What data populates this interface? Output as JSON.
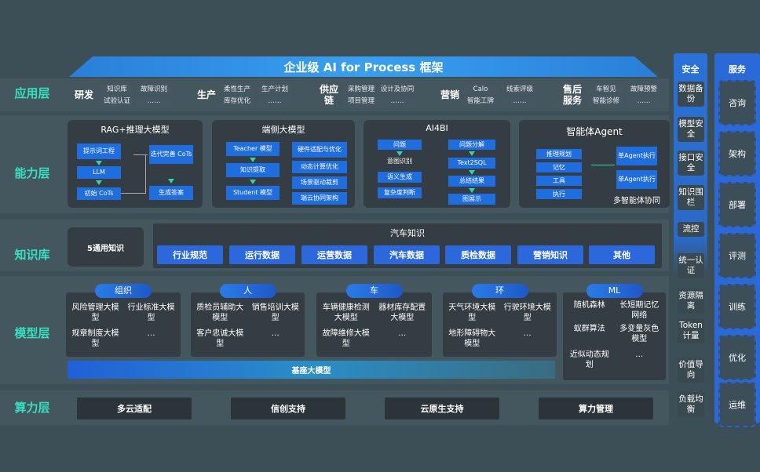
{
  "title": "企业级 AI for Process 框架",
  "layers": {
    "app": "应用层",
    "capability": "能力层",
    "knowledge": "知识库",
    "model": "模型层",
    "compute": "算力层"
  },
  "app": [
    {
      "name": "研发",
      "items": [
        "知识库",
        "故障识别",
        "试验认证",
        "……"
      ]
    },
    {
      "name": "生产",
      "items": [
        "柔性生产",
        "生产计划",
        "库存优化",
        "……"
      ]
    },
    {
      "name": "供应链",
      "items": [
        "采购管理",
        "设计及协同",
        "项目管理",
        "……"
      ]
    },
    {
      "name": "营销",
      "items": [
        "Calo",
        "线索评级",
        "智能工牌",
        "……"
      ]
    },
    {
      "name": "售后服务",
      "items": [
        "车智见",
        "故障预警",
        "智能诊修",
        "……"
      ]
    }
  ],
  "capability": {
    "rag": {
      "title": "RAG+推理大模型",
      "steps": [
        "提示词工程",
        "LLM",
        "初始 CoTs",
        "迭代完善 CoTs",
        "生成答案"
      ]
    },
    "edge": {
      "title": "端侧大模型",
      "steps": [
        "Teacher 模型",
        "知识提取",
        "Student 模型"
      ],
      "features": [
        "硬件适配与优化",
        "动态计算优化",
        "场景驱动裁剪",
        "端云协同架构"
      ]
    },
    "ai4bi": {
      "title": "AI4BI",
      "left": [
        "问题",
        "意图识别",
        "语义生成",
        "复杂度判断"
      ],
      "right": [
        "问题分解",
        "Text2SQL",
        "总结结果",
        "图展示"
      ]
    },
    "agent": {
      "title": "智能体Agent",
      "items": [
        "推理规划",
        "记忆",
        "工具",
        "执行"
      ],
      "exec": [
        "单Agent执行",
        "单Agent执行"
      ],
      "footer": "多智能体协同"
    }
  },
  "knowledge": {
    "general": "5通用知识",
    "auto_title": "汽车知识",
    "chips": [
      "行业规范",
      "运行数据",
      "运营数据",
      "汽车数据",
      "质检数据",
      "营销知识",
      "其他"
    ]
  },
  "models": [
    {
      "tag": "组织",
      "items": [
        "风险管理大模型",
        "行业标准大模型",
        "规章制度大模型",
        "…"
      ]
    },
    {
      "tag": "人",
      "items": [
        "质检员辅助大模型",
        "销售培训大模型",
        "客户忠诚大模型",
        "…"
      ]
    },
    {
      "tag": "车",
      "items": [
        "车辆健康检测大模型",
        "器材库存配置大模型",
        "故障维修大模型",
        "…"
      ]
    },
    {
      "tag": "环",
      "items": [
        "天气环境大模型",
        "行驶环境大模型",
        "地形障碍物大模型",
        "…"
      ]
    },
    {
      "tag": "ML",
      "items": [
        "随机森林",
        "长短期记忆网络",
        "蚁群算法",
        "多变量灰色模型",
        "近似动态规划",
        "…"
      ]
    }
  ],
  "base_model": "基座大模型",
  "compute": [
    "多云适配",
    "信创支持",
    "云原生支持",
    "算力管理"
  ],
  "security": {
    "title": "安全",
    "items": [
      "数据备份",
      "模型安全",
      "接口安全",
      "知识围栏",
      "流控",
      "统一认证",
      "资源隔离",
      "Token计量",
      "价值导向",
      "负载均衡"
    ]
  },
  "service": {
    "title": "服务",
    "items": [
      "咨询",
      "架构",
      "部署",
      "评测",
      "训练",
      "优化",
      "运维"
    ]
  }
}
